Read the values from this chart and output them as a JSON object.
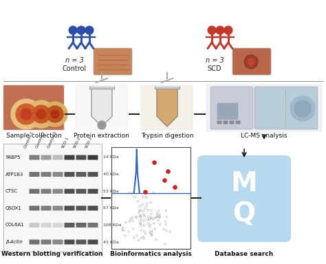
{
  "bg_color": "#ffffff",
  "control_icon_color": "#2b4fa8",
  "scd_icon_color": "#c0392b",
  "workflow_labels": [
    "Sample collection",
    "Protein extraction",
    "Trypsin digestion",
    "LC-MS analysis"
  ],
  "bottom_labels": [
    "Western blotting verification",
    "Bioinformatics analysis",
    "Database search"
  ],
  "wb_genes": [
    "FABP5",
    "ATP1B3",
    "CTSC",
    "QSOX1",
    "COL6A1",
    "β-Actin"
  ],
  "wb_kda": [
    "14 KDa",
    "40 KDa",
    "53 KDa",
    "67 KDa",
    "108 KDa",
    "43 KDa"
  ],
  "wb_col_labels": [
    "Control-1",
    "Control-2",
    "Control-3",
    "SCD-1",
    "SCD-2",
    "SCD-3"
  ],
  "mq_bg_color": "#b8d8ee",
  "mq_text_color": "#ffffff",
  "dash_color": "#222222",
  "font_size_labels": 7,
  "font_size_small": 5.5
}
